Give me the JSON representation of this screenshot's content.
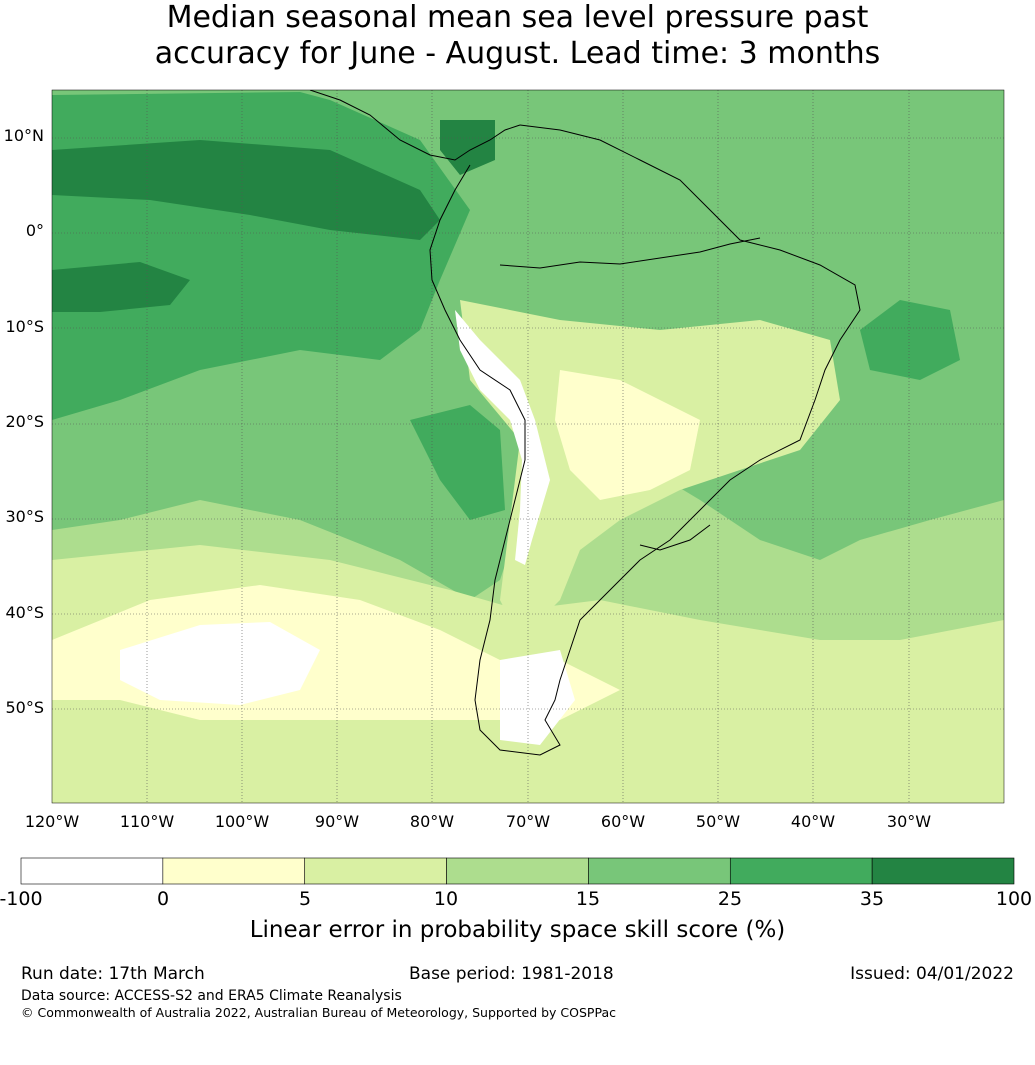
{
  "title": {
    "line1": "Median seasonal mean sea level pressure past",
    "line2": "accuracy for June - August. Lead time: 3 months"
  },
  "map": {
    "lat_labels": [
      "10°N",
      "0°",
      "10°S",
      "20°S",
      "30°S",
      "40°S",
      "50°S"
    ],
    "lon_labels": [
      "120°W",
      "110°W",
      "100°W",
      "90°W",
      "80°W",
      "70°W",
      "60°W",
      "50°W",
      "40°W",
      "30°W"
    ]
  },
  "colorbar": {
    "ticks": [
      "-100",
      "0",
      "5",
      "10",
      "15",
      "25",
      "35",
      "100"
    ],
    "colors": [
      "#ffffff",
      "#ffffcc",
      "#d9f0a3",
      "#addd8e",
      "#78c679",
      "#41ab5d",
      "#238443"
    ],
    "label": "Linear error in probability space skill score (%)"
  },
  "footer": {
    "run_date": "Run date: 17th March",
    "base_period": "Base period: 1981-2018",
    "issued": "Issued: 04/01/2022",
    "data_source": "Data source: ACCESS-S2 and ERA5 Climate Reanalysis",
    "copyright": "© Commonwealth of Australia 2022, Australian Bureau of Meteorology, Supported by COSPPac"
  }
}
